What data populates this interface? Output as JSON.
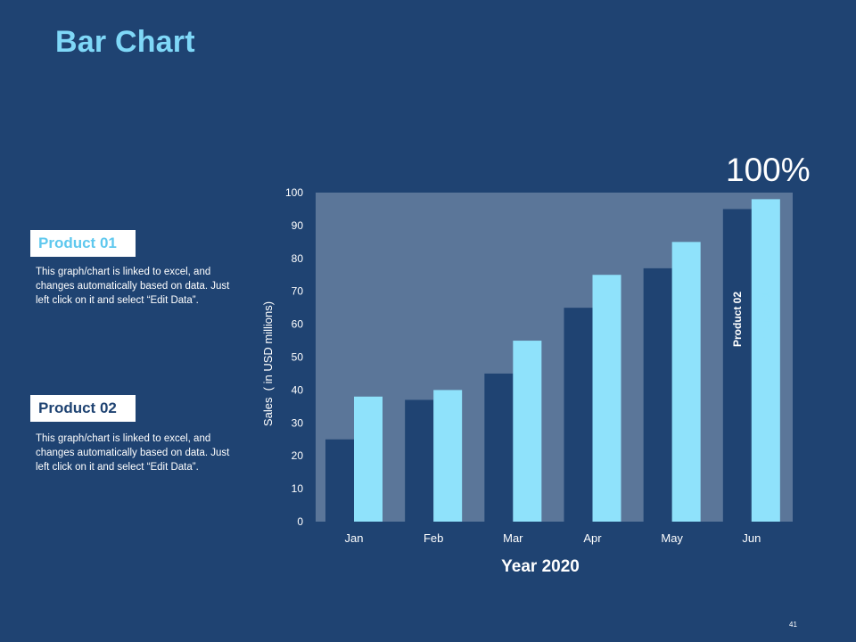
{
  "slide": {
    "title": "Bar Chart",
    "page_number": "41",
    "percent_label": "100%"
  },
  "products": [
    {
      "label": "Product 01",
      "description": "This graph/chart is linked to excel, and changes automatically based on data. Just left click on it and select “Edit Data”."
    },
    {
      "label": "Product 02",
      "description": "This graph/chart is linked to excel, and changes automatically based on data. Just left click on it and select “Edit Data”."
    }
  ],
  "colors": {
    "background": "#1f4372",
    "plot_area": "#5b7699",
    "product_01": "#8fe2fb",
    "product_02": "#1f4372",
    "title": "#7fd8f8"
  },
  "chart_data": {
    "type": "bar",
    "title": "",
    "xlabel": "Year 2020",
    "ylabel": "Sales  ( in USD millions)",
    "ylim": [
      0,
      100
    ],
    "yticks": [
      0,
      10,
      20,
      30,
      40,
      50,
      60,
      70,
      80,
      90,
      100
    ],
    "categories": [
      "Jan",
      "Feb",
      "Mar",
      "Apr",
      "May",
      "Jun"
    ],
    "series": [
      {
        "name": "Product 02",
        "values": [
          25,
          37,
          45,
          65,
          77,
          95
        ]
      },
      {
        "name": "Product 01",
        "values": [
          38,
          40,
          55,
          75,
          85,
          98
        ]
      }
    ],
    "legend": "inside-last-bars",
    "grid": false
  }
}
